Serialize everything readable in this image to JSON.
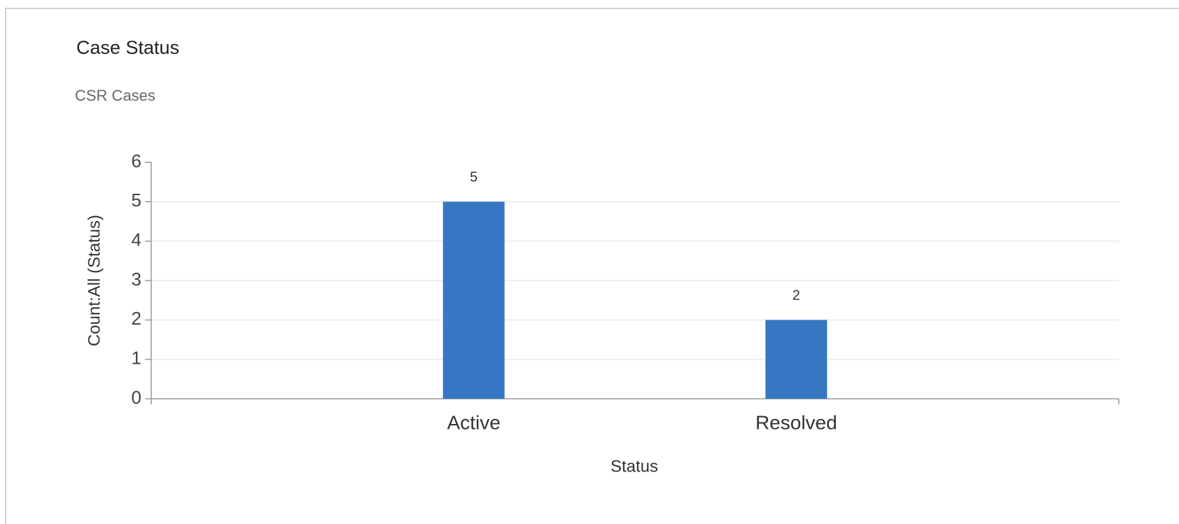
{
  "chart_data": {
    "type": "bar",
    "title": "Case Status",
    "subtitle": "CSR Cases",
    "x_label": "Status",
    "y_label": "Count:All (Status)",
    "categories": [
      "Active",
      "Resolved"
    ],
    "values": [
      5,
      2
    ],
    "color": "#3577c2",
    "ylim": [
      0,
      6
    ],
    "yticks": [
      0,
      1,
      2,
      3,
      4,
      5,
      6
    ],
    "grid": true
  }
}
